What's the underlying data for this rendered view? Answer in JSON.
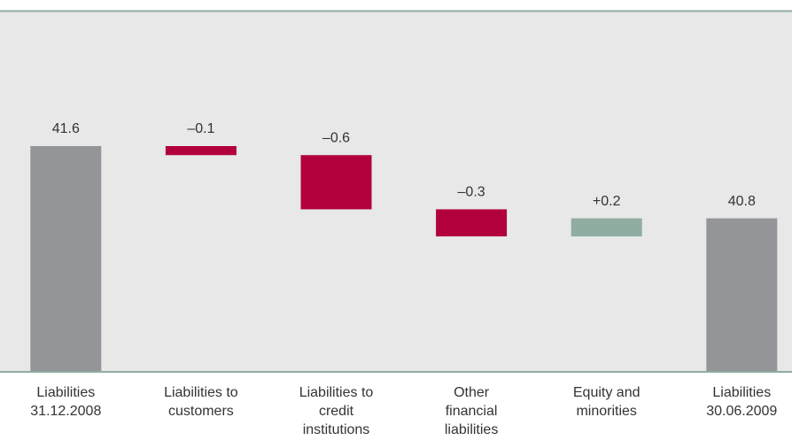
{
  "chart_data": {
    "type": "waterfall",
    "categories": [
      "Liabilities\n31.12.2008",
      "Liabilities to\ncustomers",
      "Liabilities to\ncredit\ninstitutions",
      "Other\nfinancial\nliabilities",
      "Equity and\nminorities",
      "Liabilities\n30.06.2009"
    ],
    "measure": [
      "total",
      "relative",
      "relative",
      "relative",
      "relative",
      "total"
    ],
    "values": [
      41.6,
      -0.1,
      -0.6,
      -0.3,
      0.2,
      40.8
    ],
    "value_labels": [
      "41.6",
      "–0.1",
      "–0.6",
      "–0.3",
      "+0.2",
      "40.8"
    ],
    "colors": {
      "total": "#939598",
      "decrease": "#b1003b",
      "increase": "#8fada0"
    },
    "ylim": [
      39.1,
      43.1
    ]
  }
}
